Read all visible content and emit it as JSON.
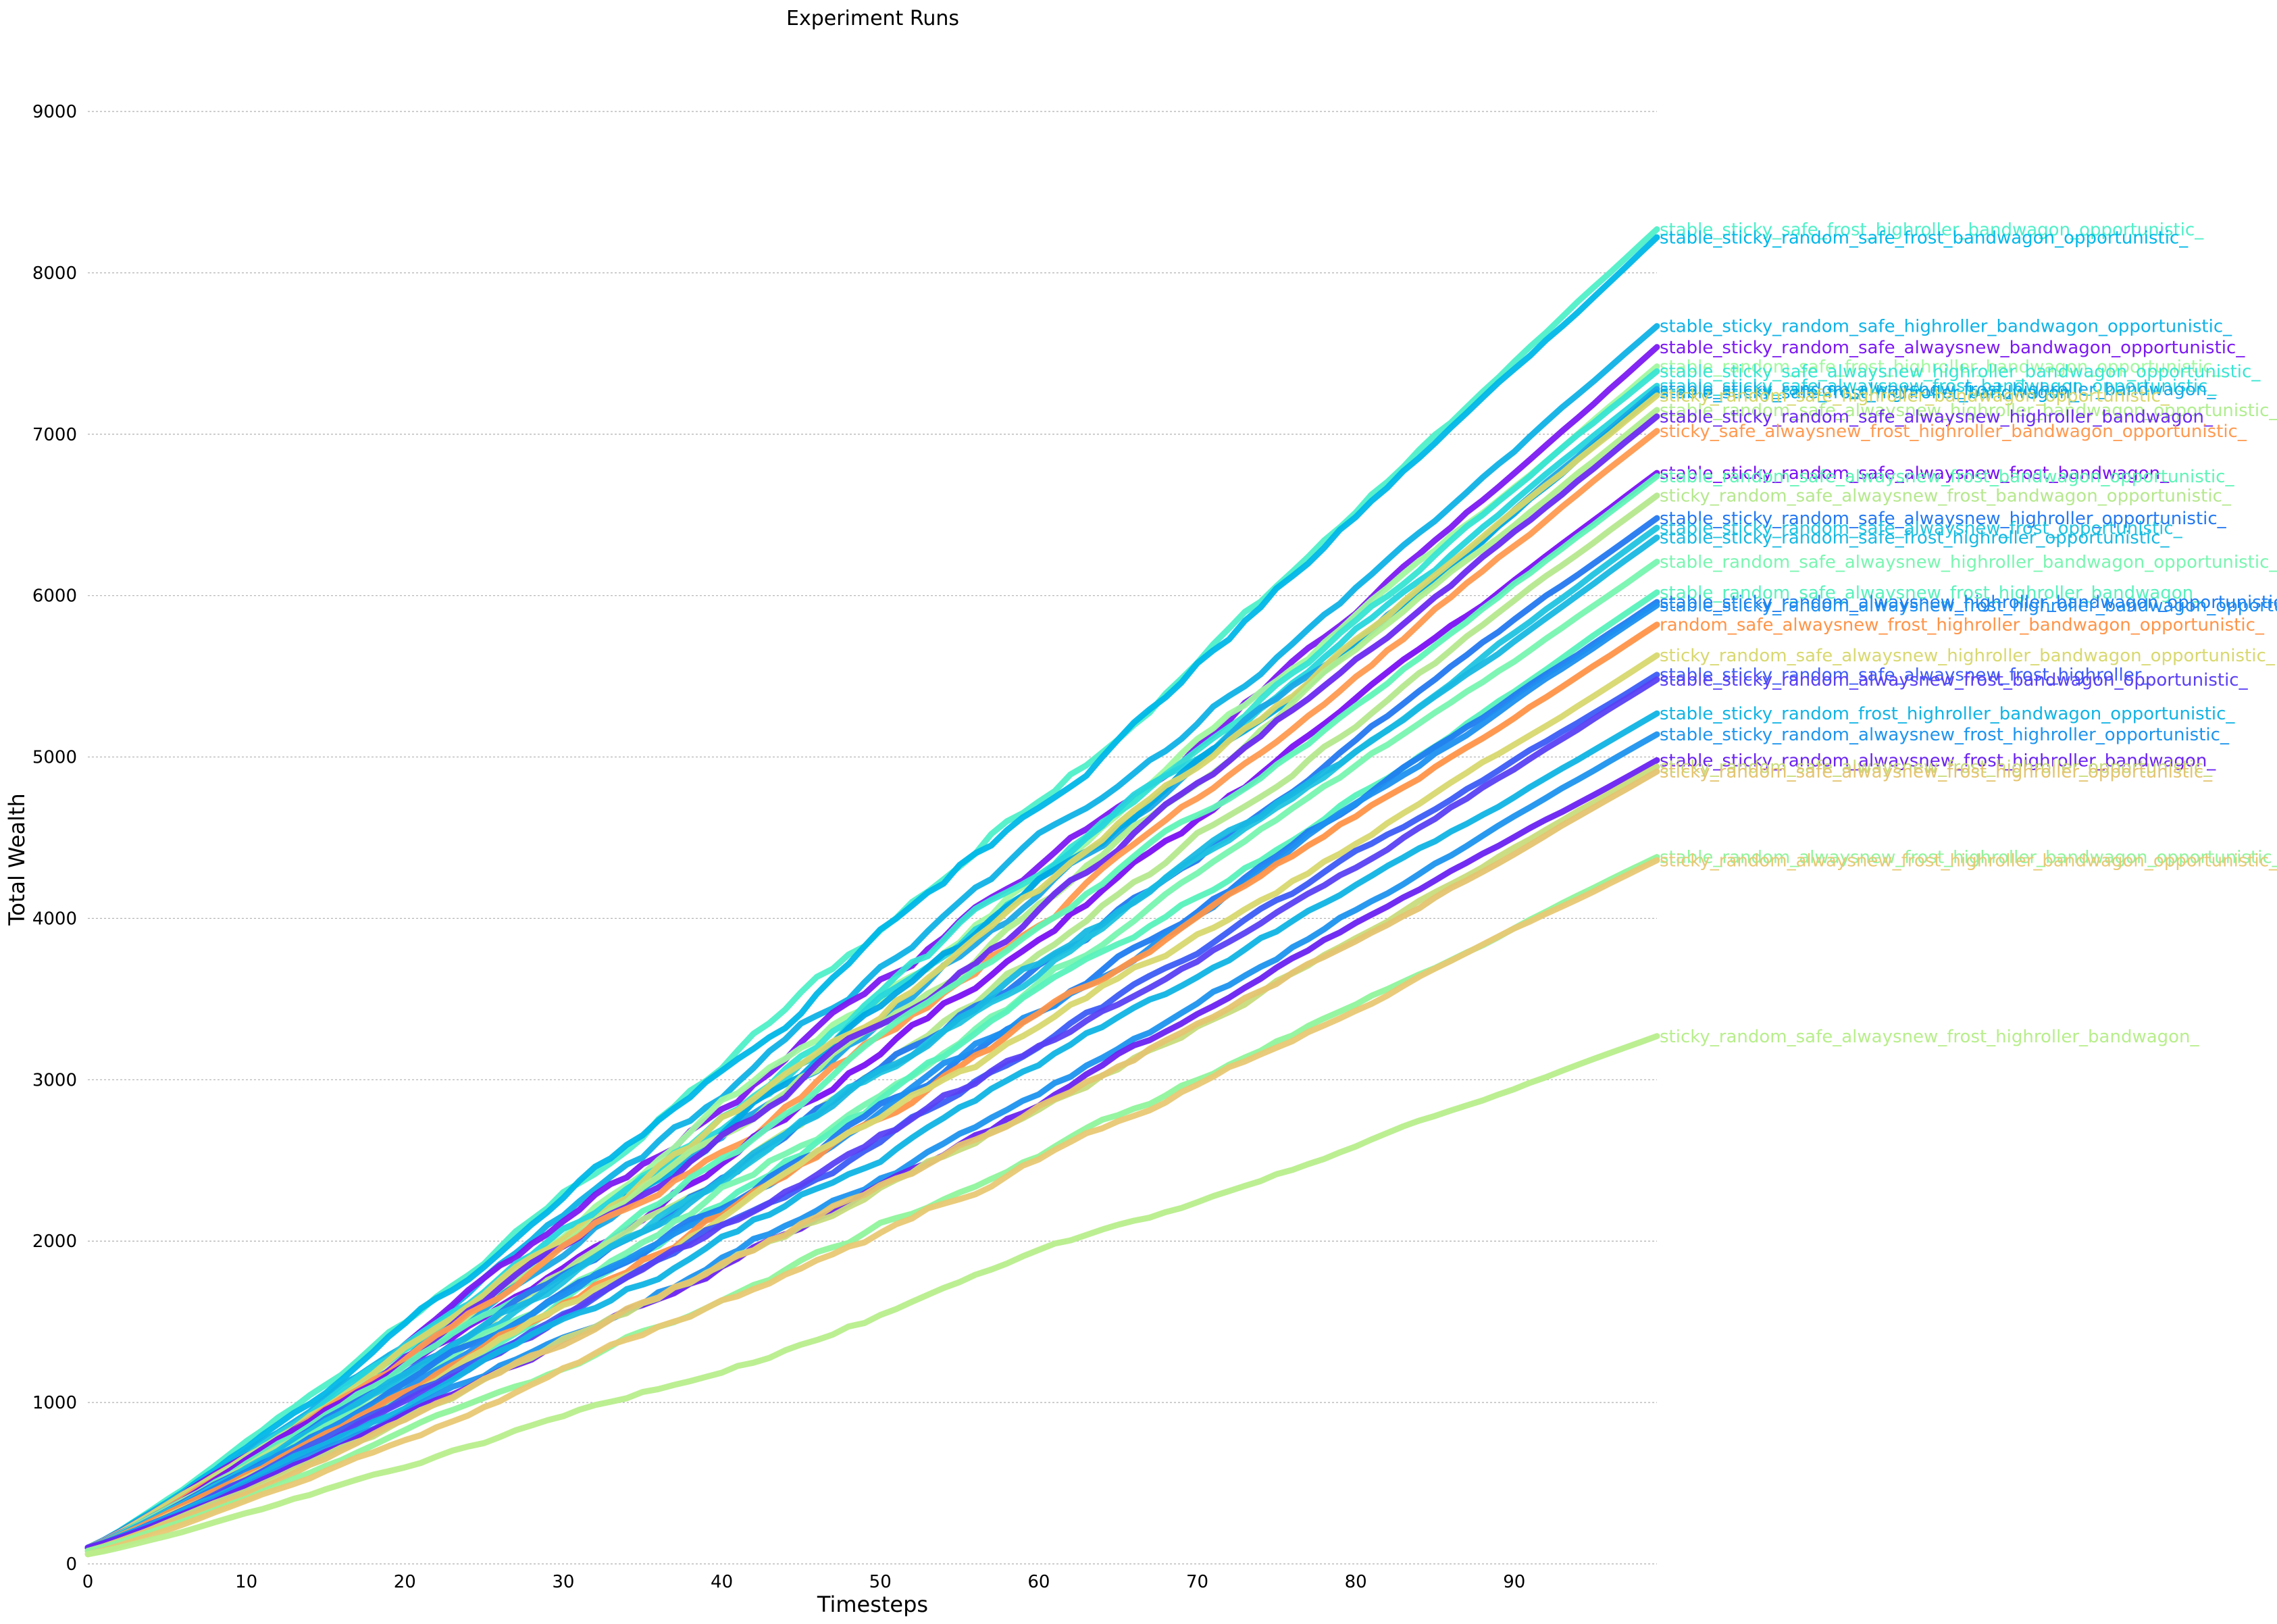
{
  "chart_data": {
    "type": "line",
    "title": "Experiment Runs",
    "xlabel": "Timesteps",
    "ylabel": "Total Wealth",
    "xlim": [
      0,
      99
    ],
    "ylim": [
      0,
      9000
    ],
    "xticks": [
      0,
      10,
      20,
      30,
      40,
      50,
      60,
      70,
      80,
      90
    ],
    "yticks": [
      0,
      1000,
      2000,
      3000,
      4000,
      5000,
      6000,
      7000,
      8000,
      9000
    ],
    "grid": "horizontal",
    "legend": "labels at line ends",
    "series": [
      {
        "name": "stable_sticky_safe_frost_highroller_bandwagon_opportunistic_",
        "color": "#4ff0c8",
        "start": 100,
        "end": 8270
      },
      {
        "name": "stable_sticky_random_safe_frost_bandwagon_opportunistic_",
        "color": "#00b7e8",
        "start": 100,
        "end": 8220
      },
      {
        "name": "stable_sticky_random_safe_highroller_bandwagon_opportunistic_",
        "color": "#0fb2e6",
        "start": 100,
        "end": 7670
      },
      {
        "name": "stable_sticky_random_safe_alwaysnew_bandwagon_opportunistic_",
        "color": "#7c19f2",
        "start": 100,
        "end": 7540
      },
      {
        "name": "stable_random_safe_frost_highroller_bandwagon_opportunistic_",
        "color": "#a2f8a0",
        "start": 100,
        "end": 7420
      },
      {
        "name": "stable_sticky_safe_alwaysnew_highroller_bandwagon_opportunistic_",
        "color": "#37e5d2",
        "start": 100,
        "end": 7390
      },
      {
        "name": "stable_sticky_safe_alwaysnew_frost_bandwagon_opportunistic_",
        "color": "#26d6dc",
        "start": 100,
        "end": 7300
      },
      {
        "name": "stable_sticky_random_alwaysnew_frost_highroller_bandwagon_",
        "color": "#1ba8e6",
        "start": 100,
        "end": 7280
      },
      {
        "name": "stable_sticky_safe_frost_highroller_bandwagon_",
        "color": "#00a8e4",
        "start": 100,
        "end": 7260
      },
      {
        "name": "sticky_random_safe_highroller_bandwagon_opportunistic_",
        "color": "#d6d66a",
        "start": 100,
        "end": 7240
      },
      {
        "name": "stable_random_safe_alwaysnew_highroller_bandwagon_opportunistic_",
        "color": "#b0ee90",
        "start": 100,
        "end": 7150
      },
      {
        "name": "stable_sticky_random_safe_alwaysnew_highroller_bandwagon_",
        "color": "#6a2af0",
        "start": 100,
        "end": 7110
      },
      {
        "name": "sticky_safe_alwaysnew_frost_highroller_bandwagon_opportunistic_",
        "color": "#ff9a50",
        "start": 100,
        "end": 7020
      },
      {
        "name": "stable_sticky_random_safe_alwaysnew_frost_bandwagon_",
        "color": "#7a10f4",
        "start": 100,
        "end": 6760
      },
      {
        "name": "stable_random_safe_alwaysnew_frost_bandwagon_opportunistic_",
        "color": "#60f4b8",
        "start": 100,
        "end": 6740
      },
      {
        "name": "sticky_random_safe_alwaysnew_frost_bandwagon_opportunistic_",
        "color": "#b6e88e",
        "start": 100,
        "end": 6620
      },
      {
        "name": "stable_sticky_random_safe_alwaysnew_highroller_opportunistic_",
        "color": "#2478f0",
        "start": 100,
        "end": 6480
      },
      {
        "name": "stable_sticky_random_safe_alwaysnew_frost_opportunistic_",
        "color": "#20c4e0",
        "start": 100,
        "end": 6420
      },
      {
        "name": "stable_sticky_random_safe_frost_highroller_opportunistic_",
        "color": "#18b8e2",
        "start": 100,
        "end": 6360
      },
      {
        "name": "stable_random_safe_alwaysnew_highroller_bandwagon_opportunistic_",
        "color": "#78f6b0",
        "start": 100,
        "end": 6210
      },
      {
        "name": "stable_random_safe_alwaysnew_frost_highroller_bandwagon_",
        "color": "#58f2bc",
        "start": 100,
        "end": 6020
      },
      {
        "name": "stable_sticky_random_alwaysnew_highroller_bandwagon_opportunistic_",
        "color": "#1f7cf0",
        "start": 100,
        "end": 5960
      },
      {
        "name": "stable_sticky_random_alwaysnew_frost_highroller_bandwagon_opportunistic_",
        "color": "#1e90f0",
        "start": 100,
        "end": 5940
      },
      {
        "name": "random_safe_alwaysnew_frost_highroller_bandwagon_opportunistic_",
        "color": "#ff9448",
        "start": 100,
        "end": 5820
      },
      {
        "name": "sticky_random_safe_alwaysnew_highroller_bandwagon_opportunistic_",
        "color": "#d8d870",
        "start": 100,
        "end": 5630
      },
      {
        "name": "stable_sticky_random_safe_alwaysnew_frost_highroller_",
        "color": "#3c5cf6",
        "start": 100,
        "end": 5510
      },
      {
        "name": "stable_sticky_random_alwaysnew_frost_bandwagon_opportunistic_",
        "color": "#5a40f4",
        "start": 100,
        "end": 5480
      },
      {
        "name": "stable_sticky_random_frost_highroller_bandwagon_opportunistic_",
        "color": "#10b4e4",
        "start": 100,
        "end": 5270
      },
      {
        "name": "stable_sticky_random_alwaysnew_frost_highroller_opportunistic_",
        "color": "#1e94ee",
        "start": 100,
        "end": 5140
      },
      {
        "name": "stable_sticky_random_alwaysnew_frost_highroller_bandwagon_",
        "color": "#6a22f2",
        "start": 100,
        "end": 4980
      },
      {
        "name": "sticky_random_safe_alwaysnew_frost_highroller_opportunistic_",
        "color": "#c8dc7c",
        "start": 80,
        "end": 4940
      },
      {
        "name": "sticky_random_safe_alwaysnew_frost_highroller_opportunistic_",
        "color": "#e4c470",
        "start": 80,
        "end": 4910
      },
      {
        "name": "stable_random_alwaysnew_frost_highroller_bandwagon_opportunistic_",
        "color": "#90f49c",
        "start": 80,
        "end": 4380
      },
      {
        "name": "sticky_random_alwaysnew_frost_highroller_bandwagon_opportunistic_",
        "color": "#e8c874",
        "start": 60,
        "end": 4360
      },
      {
        "name": "sticky_random_safe_alwaysnew_frost_highroller_bandwagon_",
        "color": "#b8ee8c",
        "start": 60,
        "end": 3270
      }
    ]
  }
}
